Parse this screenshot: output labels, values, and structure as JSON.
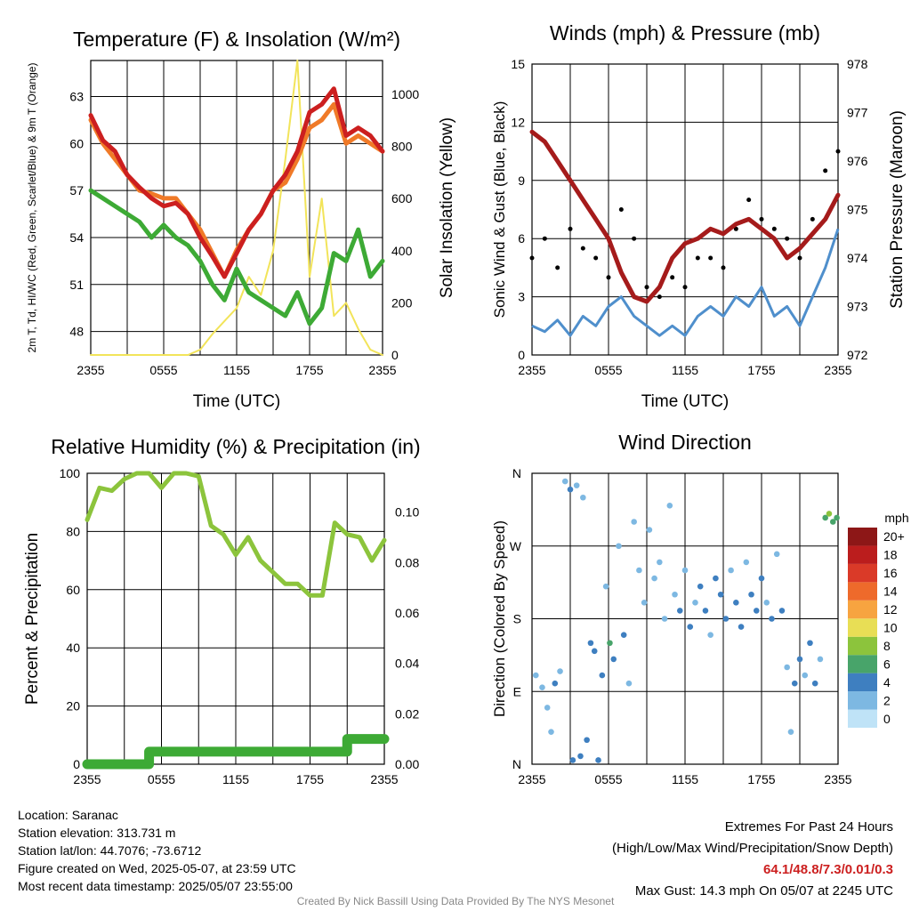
{
  "chart_data": [
    {
      "type": "line",
      "title": "Temperature (F) & Insolation (W/m²)",
      "xlabel": "Time (UTC)",
      "ylabel": "2m T, Td, HI/WC (Red, Green, Scarlet/Blue) & 9m T (Orange)",
      "y2label": "Solar Insolation (Yellow)",
      "x_ticks": [
        "2355",
        "0555",
        "1155",
        "1755",
        "2355"
      ],
      "y_ticks": [
        48,
        51,
        54,
        57,
        60,
        63
      ],
      "y2_ticks": [
        0,
        200,
        400,
        600,
        800,
        1000
      ],
      "ylim": [
        46.5,
        65.3
      ],
      "y2lim": [
        0,
        1130
      ],
      "x_hours": [
        0,
        1,
        2,
        3,
        4,
        5,
        6,
        7,
        8,
        9,
        10,
        11,
        12,
        13,
        14,
        15,
        16,
        17,
        18,
        19,
        20,
        21,
        22,
        23,
        24
      ],
      "series": [
        {
          "name": "2m T",
          "color": "#cc1f1f",
          "axis": "left",
          "values": [
            61.8,
            60.2,
            59.5,
            58.0,
            57.2,
            56.5,
            56.0,
            56.2,
            55.5,
            54.0,
            52.8,
            51.5,
            53.0,
            54.5,
            55.5,
            57.0,
            58.0,
            59.5,
            62.0,
            62.5,
            63.5,
            60.5,
            61.0,
            60.5,
            59.5
          ]
        },
        {
          "name": "9m T",
          "color": "#f07a28",
          "axis": "left",
          "values": [
            61.5,
            60.0,
            59.0,
            58.0,
            57.0,
            56.8,
            56.5,
            56.5,
            55.5,
            54.5,
            53.0,
            51.5,
            53.2,
            54.5,
            55.5,
            57.0,
            57.5,
            59.0,
            61.0,
            61.5,
            62.5,
            60.0,
            60.5,
            60.0,
            59.5
          ]
        },
        {
          "name": "Td",
          "color": "#3daa35",
          "axis": "left",
          "values": [
            57.0,
            56.5,
            56.0,
            55.5,
            55.0,
            54.0,
            54.8,
            54.0,
            53.5,
            52.5,
            51.0,
            50.0,
            52.0,
            50.5,
            50.0,
            49.5,
            49.0,
            50.5,
            48.5,
            49.5,
            53.0,
            52.5,
            54.5,
            51.5,
            52.5
          ]
        },
        {
          "name": "Solar",
          "color": "#f2e45a",
          "axis": "right",
          "values": [
            0,
            0,
            0,
            0,
            0,
            0,
            0,
            0,
            0,
            20,
            80,
            130,
            180,
            300,
            230,
            400,
            750,
            1130,
            300,
            600,
            150,
            200,
            100,
            20,
            0
          ]
        }
      ]
    },
    {
      "type": "scatter",
      "title": "Winds (mph) & Pressure (mb)",
      "xlabel": "Time (UTC)",
      "ylabel": "Sonic Wind & Gust (Blue, Black)",
      "y2label": "Station Pressure (Maroon)",
      "x_ticks": [
        "2355",
        "0555",
        "1155",
        "1755",
        "2355"
      ],
      "y_ticks": [
        0,
        3,
        6,
        9,
        12,
        15
      ],
      "y2_ticks": [
        972,
        973,
        974,
        975,
        976,
        977,
        978
      ],
      "ylim": [
        0,
        15
      ],
      "y2lim": [
        972,
        978
      ],
      "x_hours": [
        0,
        1,
        2,
        3,
        4,
        5,
        6,
        7,
        8,
        9,
        10,
        11,
        12,
        13,
        14,
        15,
        16,
        17,
        18,
        19,
        20,
        21,
        22,
        23,
        24
      ],
      "series": [
        {
          "name": "Sonic Wind",
          "color": "#4f8fcc",
          "axis": "left",
          "values": [
            1.5,
            1.2,
            1.8,
            1.0,
            2.0,
            1.5,
            2.5,
            3.0,
            2.0,
            1.5,
            1.0,
            1.5,
            1.0,
            2.0,
            2.5,
            2.0,
            3.0,
            2.5,
            3.5,
            2.0,
            2.5,
            1.5,
            3.0,
            4.5,
            6.5
          ]
        },
        {
          "name": "Gust",
          "color": "#000000",
          "axis": "left",
          "values": [
            5.0,
            6.0,
            4.5,
            6.5,
            5.5,
            5.0,
            4.0,
            7.5,
            6.0,
            3.5,
            3.0,
            4.0,
            3.5,
            5.0,
            5.0,
            4.5,
            6.5,
            8.0,
            7.0,
            6.5,
            6.0,
            5.0,
            7.0,
            9.5,
            10.5
          ]
        },
        {
          "name": "Pressure",
          "color": "#a51b1b",
          "axis": "right",
          "values": [
            976.6,
            976.4,
            976.0,
            975.6,
            975.2,
            974.8,
            974.4,
            973.7,
            973.2,
            973.1,
            973.4,
            974.0,
            974.3,
            974.4,
            974.6,
            974.5,
            974.7,
            974.8,
            974.6,
            974.4,
            974.0,
            974.2,
            974.5,
            974.8,
            975.3
          ]
        }
      ]
    },
    {
      "type": "line",
      "title": "Relative Humidity (%) & Precipitation (in)",
      "ylabel": "Percent & Precipitation",
      "x_ticks": [
        "2355",
        "0555",
        "1155",
        "1755",
        "2355"
      ],
      "y_ticks": [
        0,
        20,
        40,
        60,
        80,
        100
      ],
      "y2_ticks": [
        "0.00",
        "0.02",
        "0.04",
        "0.06",
        "0.08",
        "0.10"
      ],
      "ylim": [
        0,
        100
      ],
      "y2lim": [
        0,
        0.1154
      ],
      "x_hours": [
        0,
        1,
        2,
        3,
        4,
        5,
        6,
        7,
        8,
        9,
        10,
        11,
        12,
        13,
        14,
        15,
        16,
        17,
        18,
        19,
        20,
        21,
        22,
        23,
        24
      ],
      "series": [
        {
          "name": "RH",
          "color": "#8cc43c",
          "axis": "left",
          "values": [
            84,
            95,
            94,
            98,
            100,
            100,
            95,
            100,
            100,
            99,
            82,
            79,
            72,
            78,
            70,
            66,
            62,
            62,
            58,
            58,
            83,
            79,
            78,
            70,
            77
          ]
        },
        {
          "name": "Precip",
          "color": "#3daa35",
          "axis": "right",
          "values": [
            0,
            0,
            0,
            0,
            0,
            0.005,
            0.005,
            0.005,
            0.005,
            0.005,
            0.005,
            0.005,
            0.005,
            0.005,
            0.005,
            0.005,
            0.005,
            0.005,
            0.005,
            0.005,
            0.005,
            0.01,
            0.01,
            0.01,
            0.01
          ]
        }
      ]
    },
    {
      "type": "scatter",
      "title": "Wind Direction",
      "ylabel": "Direction (Colored By Speed)",
      "x_ticks": [
        "2355",
        "0555",
        "1155",
        "1755",
        "2355"
      ],
      "y_ticks": [
        "N",
        "E",
        "S",
        "W",
        "N"
      ],
      "ylim": [
        0,
        360
      ],
      "colorbar_title": "mph",
      "colorbar_labels": [
        "0",
        "2",
        "4",
        "6",
        "8",
        "10",
        "12",
        "14",
        "16",
        "18",
        "20+"
      ],
      "colorbar_colors": [
        "#bfe3f7",
        "#7db8e2",
        "#3e7fc0",
        "#48a46a",
        "#8cc43c",
        "#e8de55",
        "#f7a440",
        "#ee6a2b",
        "#da3a28",
        "#bb1d1d",
        "#8d1717"
      ],
      "points": [
        {
          "h": 0.3,
          "deg": 110,
          "spd": 2
        },
        {
          "h": 0.8,
          "deg": 95,
          "spd": 1
        },
        {
          "h": 1.2,
          "deg": 70,
          "spd": 2
        },
        {
          "h": 1.5,
          "deg": 40,
          "spd": 1
        },
        {
          "h": 1.8,
          "deg": 100,
          "spd": 3
        },
        {
          "h": 2.2,
          "deg": 115,
          "spd": 2
        },
        {
          "h": 2.6,
          "deg": 350,
          "spd": 2
        },
        {
          "h": 3.0,
          "deg": 340,
          "spd": 3
        },
        {
          "h": 3.2,
          "deg": 5,
          "spd": 3
        },
        {
          "h": 3.5,
          "deg": 345,
          "spd": 2
        },
        {
          "h": 3.8,
          "deg": 10,
          "spd": 4
        },
        {
          "h": 4.0,
          "deg": 330,
          "spd": 2
        },
        {
          "h": 4.3,
          "deg": 30,
          "spd": 3
        },
        {
          "h": 4.6,
          "deg": 150,
          "spd": 4
        },
        {
          "h": 4.9,
          "deg": 140,
          "spd": 3
        },
        {
          "h": 5.2,
          "deg": 5,
          "spd": 4
        },
        {
          "h": 5.5,
          "deg": 110,
          "spd": 3
        },
        {
          "h": 5.8,
          "deg": 220,
          "spd": 1
        },
        {
          "h": 6.1,
          "deg": 150,
          "spd": 5
        },
        {
          "h": 6.4,
          "deg": 130,
          "spd": 4
        },
        {
          "h": 6.8,
          "deg": 270,
          "spd": 2
        },
        {
          "h": 7.2,
          "deg": 160,
          "spd": 3
        },
        {
          "h": 7.6,
          "deg": 100,
          "spd": 2
        },
        {
          "h": 8.0,
          "deg": 300,
          "spd": 1
        },
        {
          "h": 8.4,
          "deg": 240,
          "spd": 2
        },
        {
          "h": 8.8,
          "deg": 200,
          "spd": 1
        },
        {
          "h": 9.2,
          "deg": 290,
          "spd": 1
        },
        {
          "h": 9.6,
          "deg": 230,
          "spd": 2
        },
        {
          "h": 10.0,
          "deg": 250,
          "spd": 1
        },
        {
          "h": 10.4,
          "deg": 180,
          "spd": 2
        },
        {
          "h": 10.8,
          "deg": 320,
          "spd": 1
        },
        {
          "h": 11.2,
          "deg": 210,
          "spd": 2
        },
        {
          "h": 11.6,
          "deg": 190,
          "spd": 3
        },
        {
          "h": 12.0,
          "deg": 240,
          "spd": 2
        },
        {
          "h": 12.4,
          "deg": 170,
          "spd": 4
        },
        {
          "h": 12.8,
          "deg": 200,
          "spd": 2
        },
        {
          "h": 13.2,
          "deg": 220,
          "spd": 3
        },
        {
          "h": 13.6,
          "deg": 190,
          "spd": 4
        },
        {
          "h": 14.0,
          "deg": 160,
          "spd": 2
        },
        {
          "h": 14.4,
          "deg": 230,
          "spd": 3
        },
        {
          "h": 14.8,
          "deg": 210,
          "spd": 4
        },
        {
          "h": 15.2,
          "deg": 180,
          "spd": 3
        },
        {
          "h": 15.6,
          "deg": 240,
          "spd": 2
        },
        {
          "h": 16.0,
          "deg": 200,
          "spd": 3
        },
        {
          "h": 16.4,
          "deg": 170,
          "spd": 4
        },
        {
          "h": 16.8,
          "deg": 250,
          "spd": 2
        },
        {
          "h": 17.2,
          "deg": 210,
          "spd": 3
        },
        {
          "h": 17.6,
          "deg": 190,
          "spd": 3
        },
        {
          "h": 18.0,
          "deg": 230,
          "spd": 4
        },
        {
          "h": 18.4,
          "deg": 200,
          "spd": 2
        },
        {
          "h": 18.8,
          "deg": 180,
          "spd": 3
        },
        {
          "h": 19.2,
          "deg": 260,
          "spd": 2
        },
        {
          "h": 19.6,
          "deg": 190,
          "spd": 3
        },
        {
          "h": 20.0,
          "deg": 120,
          "spd": 2
        },
        {
          "h": 20.3,
          "deg": 40,
          "spd": 2
        },
        {
          "h": 20.6,
          "deg": 100,
          "spd": 3
        },
        {
          "h": 21.0,
          "deg": 130,
          "spd": 3
        },
        {
          "h": 21.4,
          "deg": 110,
          "spd": 2
        },
        {
          "h": 21.8,
          "deg": 150,
          "spd": 4
        },
        {
          "h": 22.2,
          "deg": 100,
          "spd": 3
        },
        {
          "h": 22.6,
          "deg": 130,
          "spd": 2
        },
        {
          "h": 23.0,
          "deg": 305,
          "spd": 6
        },
        {
          "h": 23.3,
          "deg": 310,
          "spd": 7
        },
        {
          "h": 23.6,
          "deg": 300,
          "spd": 6
        },
        {
          "h": 23.9,
          "deg": 305,
          "spd": 5
        }
      ]
    }
  ],
  "info": {
    "location": "Location: Saranac",
    "elevation": "Station elevation: 313.731 m",
    "latlon": "Station lat/lon: 44.7076; -73.6712",
    "created": "Figure created on Wed, 2025-05-07, at 23:59 UTC",
    "recent": "Most recent data timestamp: 2025/05/07 23:55:00"
  },
  "extremes": {
    "title": "Extremes For Past 24 Hours",
    "subtitle": "(High/Low/Max Wind/Precipitation/Snow Depth)",
    "values": "64.1/48.8/7.3/0.01/0.3",
    "max_gust": "Max Gust: 14.3 mph On 05/07 at 2245 UTC"
  },
  "credit": "Created By Nick Bassill Using Data Provided By The NYS Mesonet"
}
